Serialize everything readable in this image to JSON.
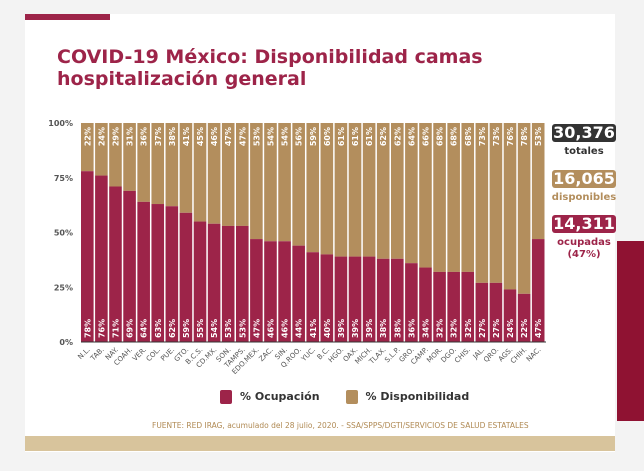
{
  "title": "COVID-19 México: Disponibilidad camas hospitalización general",
  "colors": {
    "ocupacion": "#9d2449",
    "disponibilidad": "#b38e5d",
    "totales": "#333333"
  },
  "summary": {
    "totales_value": "30,376",
    "totales_label": "totales",
    "disponibles_value": "16,065",
    "disponibles_label": "disponibles",
    "ocupadas_value": "14,311",
    "ocupadas_label": "ocupadas",
    "ocupadas_pct": "(47%)"
  },
  "legend": {
    "ocupacion": "% Ocupación",
    "disponibilidad": "% Disponibilidad"
  },
  "source": "FUENTE: RED IRAG, acumulado del 28 julio, 2020. -  SSA/SPPS/DGTI/SERVICIOS DE SALUD ESTATALES",
  "chart_data": {
    "type": "bar",
    "stacked": true,
    "categories": [
      "N.L.",
      "TAB.",
      "NAY.",
      "COAH.",
      "VER.",
      "COL.",
      "PUE.",
      "GTO.",
      "B.C.S.",
      "CD.MX.",
      "SON.",
      "TAMPS.",
      "EDO.MEX.",
      "ZAC.",
      "SIN.",
      "Q.ROO.",
      "YUC.",
      "B.C.",
      "HGO.",
      "OAX.",
      "MICH.",
      "TLAX.",
      "S.L.P.",
      "GRO.",
      "CAMP.",
      "MOR.",
      "DGO.",
      "CHIS.",
      "JAL.",
      "QRO.",
      "AGS.",
      "CHIH.",
      "NAC."
    ],
    "series": [
      {
        "name": "% Ocupación",
        "values": [
          78,
          76,
          71,
          69,
          64,
          63,
          62,
          59,
          55,
          54,
          53,
          53,
          47,
          46,
          46,
          44,
          41,
          40,
          39,
          39,
          39,
          38,
          38,
          36,
          34,
          32,
          32,
          32,
          27,
          27,
          24,
          22,
          47
        ]
      },
      {
        "name": "% Disponibilidad",
        "values": [
          22,
          24,
          29,
          31,
          36,
          37,
          38,
          41,
          45,
          46,
          47,
          47,
          53,
          54,
          54,
          56,
          59,
          60,
          61,
          61,
          61,
          62,
          62,
          64,
          66,
          68,
          68,
          68,
          73,
          73,
          76,
          78,
          53
        ]
      }
    ],
    "yticks": [
      "0%",
      "25%",
      "50%",
      "75%",
      "100%"
    ],
    "ylim": [
      0,
      100
    ],
    "legend_position": "bottom"
  }
}
